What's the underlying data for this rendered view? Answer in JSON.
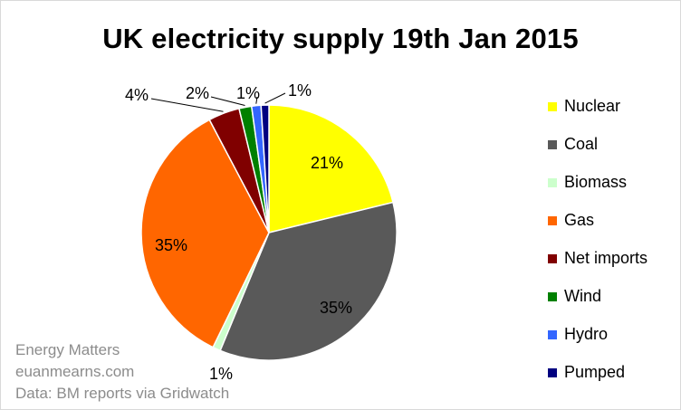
{
  "chart_data": {
    "type": "pie",
    "title": "UK electricity supply 19th Jan 2015",
    "slices": [
      {
        "label": "Nuclear",
        "value": 21.4,
        "display": "21%",
        "color": "#ffff00"
      },
      {
        "label": "Coal",
        "value": 35.4,
        "display": "35%",
        "color": "#595959"
      },
      {
        "label": "Biomass",
        "value": 1.0,
        "display": "1%",
        "color": "#ccffcc"
      },
      {
        "label": "Gas",
        "value": 35.4,
        "display": "35%",
        "color": "#ff6600"
      },
      {
        "label": "Net imports",
        "value": 4.0,
        "display": "4%",
        "color": "#800000"
      },
      {
        "label": "Wind",
        "value": 1.6,
        "display": "2%",
        "color": "#008000"
      },
      {
        "label": "Hydro",
        "value": 1.2,
        "display": "1%",
        "color": "#3366ff"
      },
      {
        "label": "Pumped",
        "value": 1.0,
        "display": "1%",
        "color": "#000080"
      }
    ],
    "legend_position": "right"
  },
  "credits": {
    "line1": "Energy Matters",
    "line2": "euanmearns.com",
    "line3": "Data: BM reports via Gridwatch"
  }
}
